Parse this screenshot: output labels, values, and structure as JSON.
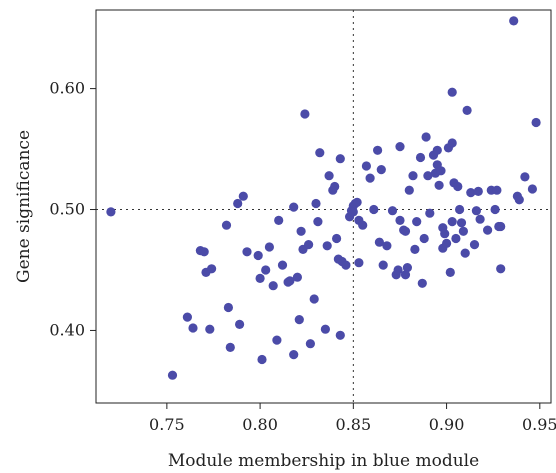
{
  "chart_data": {
    "type": "scatter",
    "title": "",
    "xlabel": "Module membership in blue module",
    "ylabel": "Gene significance",
    "xlim": [
      0.712,
      0.956
    ],
    "ylim": [
      0.34,
      0.665
    ],
    "xticks": [
      "0.75",
      "0.80",
      "0.85",
      "0.90",
      "0.95"
    ],
    "yticks": [
      "0.40",
      "0.50",
      "0.60"
    ],
    "reference_lines": {
      "x": 0.85,
      "y": 0.5,
      "style": "dotted"
    },
    "grid": false,
    "legend": "none",
    "point_color": "#4b4ba8",
    "series": [
      {
        "points": [
          [
            0.72,
            0.498
          ],
          [
            0.753,
            0.363
          ],
          [
            0.761,
            0.411
          ],
          [
            0.764,
            0.402
          ],
          [
            0.768,
            0.466
          ],
          [
            0.77,
            0.465
          ],
          [
            0.771,
            0.448
          ],
          [
            0.773,
            0.401
          ],
          [
            0.774,
            0.451
          ],
          [
            0.782,
            0.487
          ],
          [
            0.783,
            0.419
          ],
          [
            0.784,
            0.386
          ],
          [
            0.788,
            0.505
          ],
          [
            0.789,
            0.405
          ],
          [
            0.791,
            0.511
          ],
          [
            0.793,
            0.465
          ],
          [
            0.799,
            0.462
          ],
          [
            0.8,
            0.443
          ],
          [
            0.801,
            0.376
          ],
          [
            0.803,
            0.45
          ],
          [
            0.805,
            0.469
          ],
          [
            0.807,
            0.437
          ],
          [
            0.809,
            0.392
          ],
          [
            0.81,
            0.491
          ],
          [
            0.812,
            0.454
          ],
          [
            0.815,
            0.44
          ],
          [
            0.816,
            0.441
          ],
          [
            0.818,
            0.502
          ],
          [
            0.818,
            0.38
          ],
          [
            0.82,
            0.444
          ],
          [
            0.821,
            0.409
          ],
          [
            0.822,
            0.482
          ],
          [
            0.823,
            0.467
          ],
          [
            0.824,
            0.579
          ],
          [
            0.826,
            0.471
          ],
          [
            0.827,
            0.389
          ],
          [
            0.829,
            0.426
          ],
          [
            0.83,
            0.505
          ],
          [
            0.831,
            0.49
          ],
          [
            0.832,
            0.547
          ],
          [
            0.835,
            0.401
          ],
          [
            0.836,
            0.47
          ],
          [
            0.837,
            0.528
          ],
          [
            0.839,
            0.516
          ],
          [
            0.84,
            0.519
          ],
          [
            0.841,
            0.476
          ],
          [
            0.842,
            0.459
          ],
          [
            0.843,
            0.542
          ],
          [
            0.843,
            0.396
          ],
          [
            0.844,
            0.457
          ],
          [
            0.846,
            0.454
          ],
          [
            0.848,
            0.494
          ],
          [
            0.849,
            0.499
          ],
          [
            0.85,
            0.503
          ],
          [
            0.85,
            0.498
          ],
          [
            0.851,
            0.505
          ],
          [
            0.852,
            0.506
          ],
          [
            0.853,
            0.456
          ],
          [
            0.853,
            0.491
          ],
          [
            0.855,
            0.487
          ],
          [
            0.857,
            0.536
          ],
          [
            0.859,
            0.526
          ],
          [
            0.861,
            0.5
          ],
          [
            0.863,
            0.549
          ],
          [
            0.864,
            0.473
          ],
          [
            0.865,
            0.533
          ],
          [
            0.866,
            0.454
          ],
          [
            0.868,
            0.47
          ],
          [
            0.871,
            0.499
          ],
          [
            0.873,
            0.446
          ],
          [
            0.874,
            0.45
          ],
          [
            0.875,
            0.552
          ],
          [
            0.875,
            0.491
          ],
          [
            0.877,
            0.483
          ],
          [
            0.878,
            0.482
          ],
          [
            0.878,
            0.446
          ],
          [
            0.879,
            0.452
          ],
          [
            0.88,
            0.516
          ],
          [
            0.882,
            0.528
          ],
          [
            0.883,
            0.467
          ],
          [
            0.884,
            0.49
          ],
          [
            0.886,
            0.543
          ],
          [
            0.887,
            0.439
          ],
          [
            0.888,
            0.476
          ],
          [
            0.889,
            0.56
          ],
          [
            0.89,
            0.528
          ],
          [
            0.891,
            0.497
          ],
          [
            0.893,
            0.545
          ],
          [
            0.894,
            0.53
          ],
          [
            0.895,
            0.549
          ],
          [
            0.895,
            0.537
          ],
          [
            0.896,
            0.52
          ],
          [
            0.897,
            0.532
          ],
          [
            0.898,
            0.485
          ],
          [
            0.898,
            0.468
          ],
          [
            0.899,
            0.48
          ],
          [
            0.9,
            0.472
          ],
          [
            0.901,
            0.551
          ],
          [
            0.902,
            0.448
          ],
          [
            0.903,
            0.597
          ],
          [
            0.903,
            0.555
          ],
          [
            0.903,
            0.49
          ],
          [
            0.904,
            0.522
          ],
          [
            0.905,
            0.476
          ],
          [
            0.906,
            0.519
          ],
          [
            0.907,
            0.5
          ],
          [
            0.908,
            0.489
          ],
          [
            0.909,
            0.482
          ],
          [
            0.91,
            0.464
          ],
          [
            0.911,
            0.582
          ],
          [
            0.913,
            0.514
          ],
          [
            0.915,
            0.471
          ],
          [
            0.916,
            0.499
          ],
          [
            0.917,
            0.515
          ],
          [
            0.918,
            0.492
          ],
          [
            0.922,
            0.483
          ],
          [
            0.924,
            0.516
          ],
          [
            0.926,
            0.5
          ],
          [
            0.927,
            0.516
          ],
          [
            0.928,
            0.486
          ],
          [
            0.929,
            0.451
          ],
          [
            0.929,
            0.486
          ],
          [
            0.936,
            0.656
          ],
          [
            0.938,
            0.511
          ],
          [
            0.939,
            0.508
          ],
          [
            0.942,
            0.527
          ],
          [
            0.946,
            0.517
          ],
          [
            0.948,
            0.572
          ]
        ]
      }
    ]
  }
}
